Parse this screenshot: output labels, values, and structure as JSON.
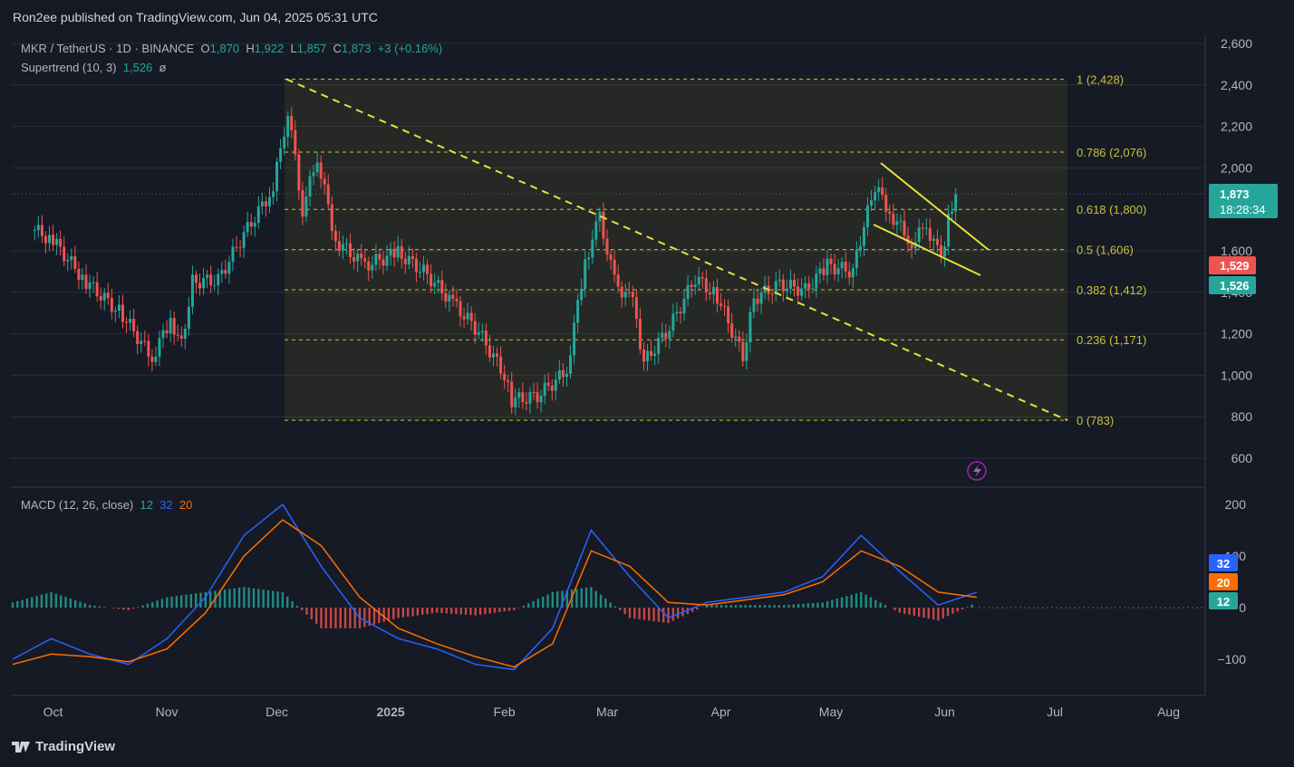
{
  "publish_line": "Ron2ee published on TradingView.com, Jun 04, 2025 05:31 UTC",
  "brand": "TradingView",
  "legend": {
    "symbol": "MKR / TetherUS · 1D · BINANCE",
    "o_label": "O",
    "o": "1,870",
    "h_label": "H",
    "h": "1,922",
    "l_label": "L",
    "l": "1,857",
    "c_label": "C",
    "c": "1,873",
    "change": "+3 (+0.16%)",
    "supertrend": "Supertrend (10, 3)",
    "supertrend_value": "1,526",
    "supertrend_extra": "ø"
  },
  "macd_legend": {
    "label": "MACD (12, 26, close)",
    "v1": "12",
    "v2": "32",
    "v3": "20"
  },
  "colors": {
    "bg": "#161a25",
    "up": "#26a69a",
    "down": "#ef5350",
    "fib": "#c9c03a",
    "trend": "#e8df3a",
    "macd": "#2962ff",
    "signal": "#ff6d00",
    "grid": "#2a2e39"
  },
  "price_badges": {
    "current": "1,873",
    "countdown": "18:28:34",
    "red": "1,529",
    "green": "1,526"
  },
  "macd_badges": {
    "macd": "32",
    "signal": "20",
    "hist": "12"
  },
  "fib_labels": [
    "1 (2,428)",
    "0.786 (2,076)",
    "0.618 (1,800)",
    "0.5 (1,606)",
    "0.382 (1,412)",
    "0.236 (1,171)",
    "0 (783)"
  ],
  "chart_data": {
    "type": "candlestick",
    "title": "MKR / TetherUS · 1D · BINANCE",
    "y_ticks": [
      "2,600",
      "2,400",
      "2,200",
      "2,000",
      "1,600",
      "1,400",
      "1,200",
      "1,000",
      "800",
      "600"
    ],
    "y_range": [
      520,
      2660
    ],
    "x_ticks": [
      "Oct",
      "Nov",
      "Dec",
      "2025",
      "Feb",
      "Mar",
      "Apr",
      "May",
      "Jun",
      "Jul",
      "Aug"
    ],
    "fib_levels": [
      {
        "ratio": "1",
        "value": 2428
      },
      {
        "ratio": "0.786",
        "value": 2076
      },
      {
        "ratio": "0.618",
        "value": 1800
      },
      {
        "ratio": "0.5",
        "value": 1606
      },
      {
        "ratio": "0.382",
        "value": 1412
      },
      {
        "ratio": "0.236",
        "value": 1171
      },
      {
        "ratio": "0",
        "value": 783
      }
    ],
    "approx_closes": [
      {
        "date": "2024-09-26",
        "close": 1700
      },
      {
        "date": "2024-10-01",
        "close": 1650
      },
      {
        "date": "2024-10-10",
        "close": 1450
      },
      {
        "date": "2024-10-20",
        "close": 1290
      },
      {
        "date": "2024-10-28",
        "close": 1080
      },
      {
        "date": "2024-11-02",
        "close": 1270
      },
      {
        "date": "2024-11-05",
        "close": 1150
      },
      {
        "date": "2024-11-08",
        "close": 1450
      },
      {
        "date": "2024-11-15",
        "close": 1460
      },
      {
        "date": "2024-11-22",
        "close": 1680
      },
      {
        "date": "2024-11-30",
        "close": 1900
      },
      {
        "date": "2024-12-04",
        "close": 2280
      },
      {
        "date": "2024-12-08",
        "close": 1800
      },
      {
        "date": "2024-12-12",
        "close": 2050
      },
      {
        "date": "2024-12-17",
        "close": 1650
      },
      {
        "date": "2024-12-25",
        "close": 1530
      },
      {
        "date": "2025-01-03",
        "close": 1590
      },
      {
        "date": "2025-01-10",
        "close": 1500
      },
      {
        "date": "2025-01-18",
        "close": 1350
      },
      {
        "date": "2025-01-25",
        "close": 1210
      },
      {
        "date": "2025-02-01",
        "close": 1000
      },
      {
        "date": "2025-02-03",
        "close": 880
      },
      {
        "date": "2025-02-10",
        "close": 900
      },
      {
        "date": "2025-02-18",
        "close": 1020
      },
      {
        "date": "2025-02-23",
        "close": 1550
      },
      {
        "date": "2025-02-27",
        "close": 1760
      },
      {
        "date": "2025-03-03",
        "close": 1450
      },
      {
        "date": "2025-03-08",
        "close": 1350
      },
      {
        "date": "2025-03-11",
        "close": 1060
      },
      {
        "date": "2025-03-18",
        "close": 1230
      },
      {
        "date": "2025-03-25",
        "close": 1470
      },
      {
        "date": "2025-03-31",
        "close": 1380
      },
      {
        "date": "2025-04-07",
        "close": 1090
      },
      {
        "date": "2025-04-10",
        "close": 1370
      },
      {
        "date": "2025-04-17",
        "close": 1440
      },
      {
        "date": "2025-04-24",
        "close": 1410
      },
      {
        "date": "2025-04-30",
        "close": 1530
      },
      {
        "date": "2025-05-07",
        "close": 1500
      },
      {
        "date": "2025-05-10",
        "close": 1720
      },
      {
        "date": "2025-05-13",
        "close": 1910
      },
      {
        "date": "2025-05-18",
        "close": 1760
      },
      {
        "date": "2025-05-23",
        "close": 1640
      },
      {
        "date": "2025-05-27",
        "close": 1720
      },
      {
        "date": "2025-05-31",
        "close": 1560
      },
      {
        "date": "2025-06-02",
        "close": 1750
      },
      {
        "date": "2025-06-04",
        "close": 1873
      }
    ],
    "macd": {
      "y_ticks": [
        "200",
        "100",
        "0",
        "−100"
      ],
      "approx_macd": [
        -100,
        -60,
        -90,
        -110,
        -60,
        20,
        140,
        200,
        80,
        -20,
        -60,
        -80,
        -110,
        -120,
        -40,
        150,
        60,
        -20,
        10,
        20,
        30,
        60,
        140,
        70,
        5,
        30
      ],
      "approx_signal": [
        -110,
        -90,
        -95,
        -105,
        -80,
        -10,
        100,
        170,
        120,
        20,
        -40,
        -70,
        -95,
        -115,
        -70,
        110,
        80,
        10,
        5,
        15,
        25,
        50,
        110,
        80,
        30,
        20
      ]
    }
  }
}
